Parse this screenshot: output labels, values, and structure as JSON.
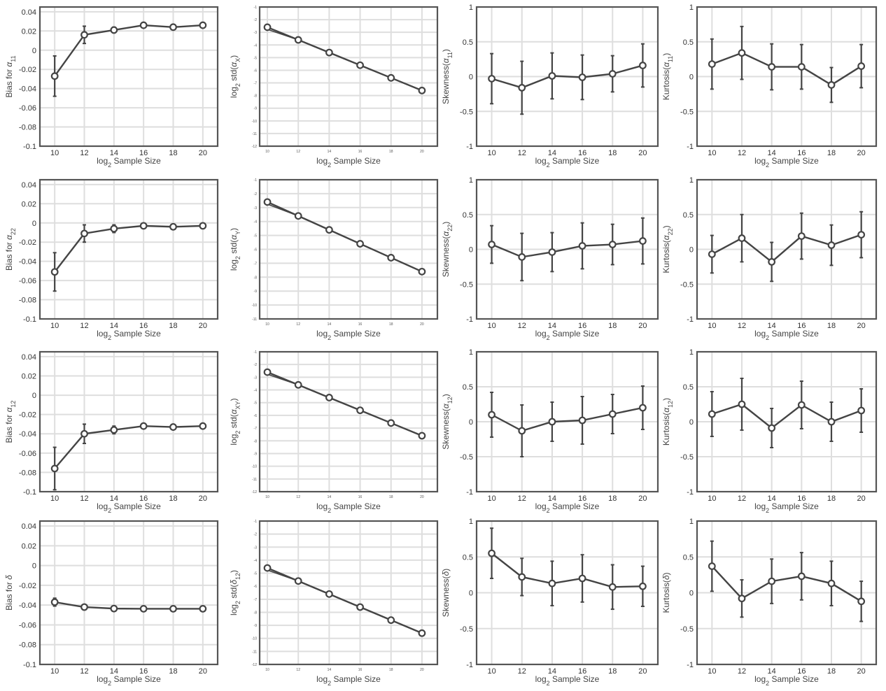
{
  "colors": {
    "series": "#444444",
    "grid": "#dedede",
    "frame": "#555555",
    "text": "#333333"
  },
  "chart_data": [
    {
      "type": "line",
      "xlabel": "log2 Sample Size",
      "ylabel": "Bias for α11",
      "x": [
        10,
        12,
        14,
        16,
        18,
        20
      ],
      "y": [
        -0.027,
        0.016,
        0.021,
        0.026,
        0.024,
        0.026
      ],
      "err": [
        0.021,
        0.009,
        0.003,
        0.002,
        0.002,
        0.002
      ],
      "xlim": [
        9,
        21
      ],
      "ylim": [
        -0.1,
        0.045
      ],
      "xticks": [
        10,
        12,
        14,
        16,
        18,
        20
      ],
      "yticks": [
        0.04,
        0.02,
        0,
        -0.02,
        -0.04,
        -0.06,
        -0.08,
        -0.1
      ],
      "ytick_labels": [
        "0.04",
        "0.02",
        "0",
        "-0.02",
        "-0.04",
        "-0.06",
        "-0.08",
        "-0.1"
      ],
      "grid": true
    },
    {
      "type": "line",
      "xlabel": "log2 Sample Size",
      "ylabel": "log2 std(αX)",
      "x": [
        10,
        12,
        14,
        16,
        18,
        20
      ],
      "y": [
        -2.6,
        -3.6,
        -4.6,
        -5.6,
        -6.6,
        -7.6
      ],
      "xlim": [
        9.5,
        21
      ],
      "ylim": [
        -12,
        -1
      ],
      "xticks": [
        10,
        12,
        14,
        16,
        18,
        20
      ],
      "yticks": [
        -1,
        -2,
        -3,
        -4,
        -5,
        -6,
        -7,
        -8,
        -9,
        -10,
        -11,
        -12
      ],
      "ytick_labels": [
        "-1",
        "-2",
        "-3",
        "-4",
        "-5",
        "-6",
        "-7",
        "-8",
        "-9",
        "-10",
        "-11",
        "-12"
      ],
      "grid": true,
      "small_ticks": true
    },
    {
      "type": "line",
      "xlabel": "log2 Sample Size",
      "ylabel": "Skewness(α11)",
      "x": [
        10,
        12,
        14,
        16,
        18,
        20
      ],
      "y": [
        -0.03,
        -0.16,
        0.01,
        -0.01,
        0.04,
        0.16
      ],
      "err": [
        0.36,
        0.38,
        0.33,
        0.32,
        0.26,
        0.31
      ],
      "xlim": [
        9,
        21
      ],
      "ylim": [
        -1,
        1
      ],
      "xticks": [
        10,
        12,
        14,
        16,
        18,
        20
      ],
      "yticks": [
        1,
        0.5,
        0,
        -0.5,
        -1
      ],
      "ytick_labels": [
        "1",
        "0.5",
        "0",
        "-0.5",
        "-1"
      ],
      "grid": true
    },
    {
      "type": "line",
      "xlabel": "log2 Sample Size",
      "ylabel": "Kurtosis(α11)",
      "x": [
        10,
        12,
        14,
        16,
        18,
        20
      ],
      "y": [
        0.18,
        0.34,
        0.14,
        0.14,
        -0.12,
        0.15
      ],
      "err": [
        0.36,
        0.38,
        0.33,
        0.32,
        0.25,
        0.31
      ],
      "xlim": [
        9,
        21
      ],
      "ylim": [
        -1,
        1
      ],
      "xticks": [
        10,
        12,
        14,
        16,
        18,
        20
      ],
      "yticks": [
        1,
        0.5,
        0,
        -0.5,
        -1
      ],
      "ytick_labels": [
        "1",
        "0.5",
        "0",
        "-0.5",
        "-1"
      ],
      "grid": true
    },
    {
      "type": "line",
      "xlabel": "log2 Sample Size",
      "ylabel": "Bias for α22",
      "x": [
        10,
        12,
        14,
        16,
        18,
        20
      ],
      "y": [
        -0.051,
        -0.011,
        -0.006,
        -0.003,
        -0.004,
        -0.003
      ],
      "err": [
        0.02,
        0.009,
        0.004,
        0.002,
        0.002,
        0.002
      ],
      "xlim": [
        9,
        21
      ],
      "ylim": [
        -0.1,
        0.045
      ],
      "xticks": [
        10,
        12,
        14,
        16,
        18,
        20
      ],
      "yticks": [
        0.04,
        0.02,
        0,
        -0.02,
        -0.04,
        -0.06,
        -0.08,
        -0.1
      ],
      "ytick_labels": [
        "0.04",
        "0.02",
        "0",
        "-0.02",
        "-0.04",
        "-0.06",
        "-0.08",
        "-0.1"
      ],
      "grid": true
    },
    {
      "type": "line",
      "xlabel": "log2 Sample Size",
      "ylabel": "log2 std(αY)",
      "x": [
        10,
        12,
        14,
        16,
        18,
        20
      ],
      "y": [
        -2.6,
        -3.6,
        -4.6,
        -5.6,
        -6.6,
        -7.6
      ],
      "xlim": [
        9.5,
        21
      ],
      "ylim": [
        -11,
        -1
      ],
      "xticks": [
        10,
        12,
        14,
        16,
        18,
        20
      ],
      "yticks": [
        -1,
        -2,
        -3,
        -4,
        -5,
        -6,
        -7,
        -8,
        -9,
        -10,
        -11
      ],
      "ytick_labels": [
        "-1",
        "-2",
        "-3",
        "-4",
        "-5",
        "-6",
        "-7",
        "-8",
        "-9",
        "-10",
        "-11"
      ],
      "grid": true,
      "small_ticks": true
    },
    {
      "type": "line",
      "xlabel": "log2 Sample Size",
      "ylabel": "Skewness(α22)",
      "x": [
        10,
        12,
        14,
        16,
        18,
        20
      ],
      "y": [
        0.07,
        -0.11,
        -0.04,
        0.05,
        0.07,
        0.12
      ],
      "err": [
        0.27,
        0.34,
        0.28,
        0.33,
        0.29,
        0.33
      ],
      "xlim": [
        9,
        21
      ],
      "ylim": [
        -1,
        1
      ],
      "xticks": [
        10,
        12,
        14,
        16,
        18,
        20
      ],
      "yticks": [
        1,
        0.5,
        0,
        -0.5,
        -1
      ],
      "ytick_labels": [
        "1",
        "0.5",
        "0",
        "-0.5",
        "-1"
      ],
      "grid": true
    },
    {
      "type": "line",
      "xlabel": "log2 Sample Size",
      "ylabel": "Kurtosis(α22)",
      "x": [
        10,
        12,
        14,
        16,
        18,
        20
      ],
      "y": [
        -0.07,
        0.16,
        -0.18,
        0.19,
        0.06,
        0.21
      ],
      "err": [
        0.27,
        0.34,
        0.28,
        0.33,
        0.29,
        0.33
      ],
      "xlim": [
        9,
        21
      ],
      "ylim": [
        -1,
        1
      ],
      "xticks": [
        10,
        12,
        14,
        16,
        18,
        20
      ],
      "yticks": [
        1,
        0.5,
        0,
        -0.5,
        -1
      ],
      "ytick_labels": [
        "1",
        "0.5",
        "0",
        "-0.5",
        "-1"
      ],
      "grid": true
    },
    {
      "type": "line",
      "xlabel": "log2 Sample Size",
      "ylabel": "Bias for α12",
      "x": [
        10,
        12,
        14,
        16,
        18,
        20
      ],
      "y": [
        -0.076,
        -0.04,
        -0.036,
        -0.032,
        -0.033,
        -0.032
      ],
      "err": [
        0.022,
        0.01,
        0.004,
        0.002,
        0.002,
        0.002
      ],
      "xlim": [
        9,
        21
      ],
      "ylim": [
        -0.1,
        0.045
      ],
      "xticks": [
        10,
        12,
        14,
        16,
        18,
        20
      ],
      "yticks": [
        0.04,
        0.02,
        0,
        -0.02,
        -0.04,
        -0.06,
        -0.08,
        -0.1
      ],
      "ytick_labels": [
        "0.04",
        "0.02",
        "0",
        "-0.02",
        "-0.04",
        "-0.06",
        "-0.08",
        "-0.1"
      ],
      "grid": true
    },
    {
      "type": "line",
      "xlabel": "log2 Sample Size",
      "ylabel": "log2 std(αXY)",
      "x": [
        10,
        12,
        14,
        16,
        18,
        20
      ],
      "y": [
        -2.6,
        -3.6,
        -4.6,
        -5.6,
        -6.6,
        -7.6
      ],
      "xlim": [
        9.5,
        21
      ],
      "ylim": [
        -12,
        -1
      ],
      "xticks": [
        10,
        12,
        14,
        16,
        18,
        20
      ],
      "yticks": [
        -1,
        -2,
        -3,
        -4,
        -5,
        -6,
        -7,
        -8,
        -9,
        -10,
        -11,
        -12
      ],
      "ytick_labels": [
        "-1",
        "-2",
        "-3",
        "-4",
        "-5",
        "-6",
        "-7",
        "-8",
        "-9",
        "-10",
        "-11",
        "-12"
      ],
      "grid": true,
      "small_ticks": true
    },
    {
      "type": "line",
      "xlabel": "log2 Sample Size",
      "ylabel": "Skewness(α12)",
      "x": [
        10,
        12,
        14,
        16,
        18,
        20
      ],
      "y": [
        0.1,
        -0.13,
        0.0,
        0.02,
        0.11,
        0.2
      ],
      "err": [
        0.32,
        0.37,
        0.28,
        0.34,
        0.28,
        0.31
      ],
      "xlim": [
        9,
        21
      ],
      "ylim": [
        -1,
        1
      ],
      "xticks": [
        10,
        12,
        14,
        16,
        18,
        20
      ],
      "yticks": [
        1,
        0.5,
        0,
        -0.5,
        -1
      ],
      "ytick_labels": [
        "1",
        "0.5",
        "0",
        "-0.5",
        "-1"
      ],
      "grid": true
    },
    {
      "type": "line",
      "xlabel": "log2 Sample Size",
      "ylabel": "Kurtosis(α12)",
      "x": [
        10,
        12,
        14,
        16,
        18,
        20
      ],
      "y": [
        0.11,
        0.25,
        -0.09,
        0.24,
        0.0,
        0.16
      ],
      "err": [
        0.32,
        0.37,
        0.28,
        0.34,
        0.28,
        0.31
      ],
      "xlim": [
        9,
        21
      ],
      "ylim": [
        -1,
        1
      ],
      "xticks": [
        10,
        12,
        14,
        16,
        18,
        20
      ],
      "yticks": [
        1,
        0.5,
        0,
        -0.5,
        -1
      ],
      "ytick_labels": [
        "1",
        "0.5",
        "0",
        "-0.5",
        "-1"
      ],
      "grid": true
    },
    {
      "type": "line",
      "xlabel": "log2 Sample Size",
      "ylabel": "Bias for δ",
      "x": [
        10,
        12,
        14,
        16,
        18,
        20
      ],
      "y": [
        -0.037,
        -0.042,
        -0.0435,
        -0.0437,
        -0.0437,
        -0.0437
      ],
      "err": [
        0.004,
        0.0015,
        0.001,
        0.0008,
        0.0006,
        0.0005
      ],
      "xlim": [
        9,
        21
      ],
      "ylim": [
        -0.1,
        0.045
      ],
      "xticks": [
        10,
        12,
        14,
        16,
        18,
        20
      ],
      "yticks": [
        0.04,
        0.02,
        0,
        -0.02,
        -0.04,
        -0.06,
        -0.08,
        -0.1
      ],
      "ytick_labels": [
        "0.04",
        "0.02",
        "0",
        "-0.02",
        "-0.04",
        "-0.06",
        "-0.08",
        "-0.1"
      ],
      "grid": true
    },
    {
      "type": "line",
      "xlabel": "log2 Sample Size",
      "ylabel": "log2 std(δ12)",
      "x": [
        10,
        12,
        14,
        16,
        18,
        20
      ],
      "y": [
        -4.6,
        -5.6,
        -6.6,
        -7.6,
        -8.6,
        -9.6
      ],
      "xlim": [
        9.5,
        21
      ],
      "ylim": [
        -12,
        -1
      ],
      "xticks": [
        10,
        12,
        14,
        16,
        18,
        20
      ],
      "yticks": [
        -1,
        -2,
        -3,
        -4,
        -5,
        -6,
        -7,
        -8,
        -9,
        -10,
        -11,
        -12
      ],
      "ytick_labels": [
        "-1",
        "-2",
        "-3",
        "-4",
        "-5",
        "-6",
        "-7",
        "-8",
        "-9",
        "-10",
        "-11",
        "-12"
      ],
      "grid": true,
      "small_ticks": true
    },
    {
      "type": "line",
      "xlabel": "log2 Sample Size",
      "ylabel": "Skewness(δ)",
      "x": [
        10,
        12,
        14,
        16,
        18,
        20
      ],
      "y": [
        0.55,
        0.22,
        0.13,
        0.2,
        0.08,
        0.09
      ],
      "err": [
        0.35,
        0.26,
        0.31,
        0.33,
        0.31,
        0.28
      ],
      "xlim": [
        9,
        21
      ],
      "ylim": [
        -1,
        1
      ],
      "xticks": [
        10,
        12,
        14,
        16,
        18,
        20
      ],
      "yticks": [
        1,
        0.5,
        0,
        -0.5,
        -1
      ],
      "ytick_labels": [
        "1",
        "0.5",
        "0",
        "-0.5",
        "-1"
      ],
      "grid": true
    },
    {
      "type": "line",
      "xlabel": "log2 Sample Size",
      "ylabel": "Kurtosis(δ)",
      "x": [
        10,
        12,
        14,
        16,
        18,
        20
      ],
      "y": [
        0.37,
        -0.08,
        0.16,
        0.23,
        0.13,
        -0.12
      ],
      "err": [
        0.35,
        0.26,
        0.31,
        0.33,
        0.31,
        0.28
      ],
      "xlim": [
        9,
        21
      ],
      "ylim": [
        -1,
        1
      ],
      "xticks": [
        10,
        12,
        14,
        16,
        18,
        20
      ],
      "yticks": [
        1,
        0.5,
        0,
        -0.5,
        -1
      ],
      "ytick_labels": [
        "1",
        "0.5",
        "0",
        "-0.5",
        "-1"
      ],
      "grid": true
    }
  ]
}
